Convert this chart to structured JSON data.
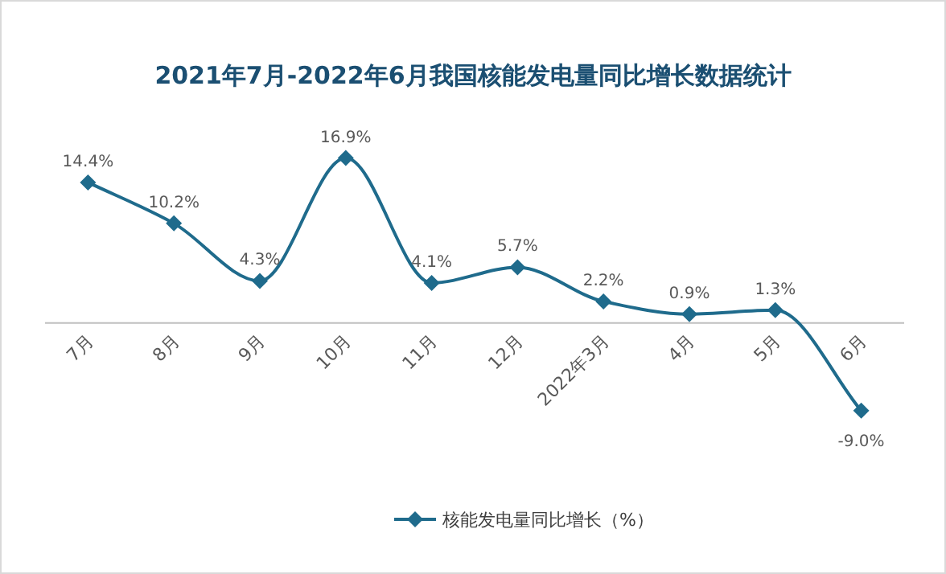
{
  "chart_data": {
    "type": "line",
    "title": "2021年7月-2022年6月我国核能发电量同比增长数据统计",
    "categories": [
      "7月",
      "8月",
      "9月",
      "10月",
      "11月",
      "12月",
      "2022年3月",
      "4月",
      "5月",
      "6月"
    ],
    "series": [
      {
        "name": "核能发电量同比增长（%）",
        "color": "#1f6b8c",
        "values": [
          14.4,
          10.2,
          4.3,
          16.9,
          4.1,
          5.7,
          2.2,
          0.9,
          1.3,
          -9.0
        ],
        "value_labels": [
          "14.4%",
          "10.2%",
          "4.3%",
          "16.9%",
          "4.1%",
          "5.7%",
          "2.2%",
          "0.9%",
          "1.3%",
          "-9.0%"
        ]
      }
    ],
    "marker": "diamond",
    "legend": "bottom"
  }
}
